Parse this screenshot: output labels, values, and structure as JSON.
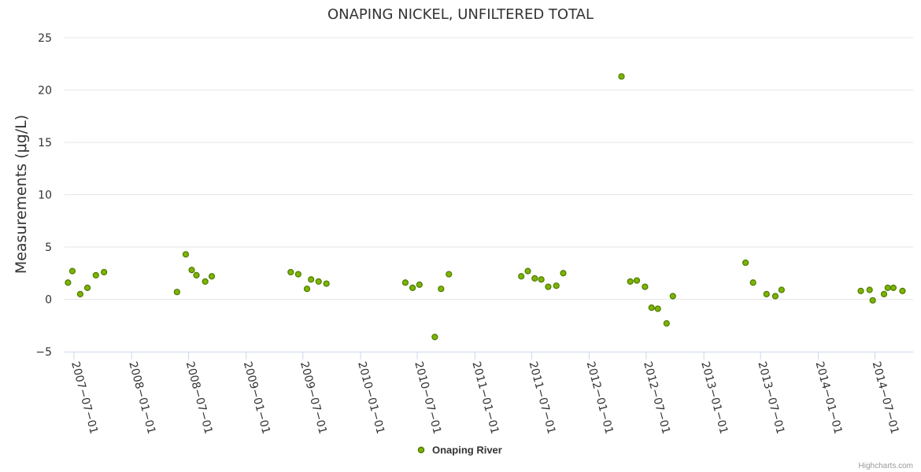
{
  "chart_data": {
    "type": "scatter",
    "title": "ONAPING NICKEL, UNFILTERED TOTAL",
    "ylabel": "Measurements (μg/L)",
    "xlabel": "",
    "ylim": [
      -5,
      25
    ],
    "yticks": [
      -5,
      0,
      5,
      10,
      15,
      20,
      25
    ],
    "xticks": [
      "2007-07-01",
      "2008-01-01",
      "2008-07-01",
      "2009-01-01",
      "2009-07-01",
      "2010-01-01",
      "2010-07-01",
      "2011-01-01",
      "2011-07-01",
      "2012-01-01",
      "2012-07-01",
      "2013-01-01",
      "2013-07-01",
      "2014-01-01",
      "2014-07-01"
    ],
    "xlim": [
      "2007-06-01",
      "2014-10-31"
    ],
    "grid": true,
    "legend_position": "bottom-center",
    "series": [
      {
        "name": "Onaping River",
        "color": "#7cb500",
        "points": [
          {
            "x": "2007-06-12",
            "y": 1.6
          },
          {
            "x": "2007-06-26",
            "y": 2.7
          },
          {
            "x": "2007-07-21",
            "y": 0.5
          },
          {
            "x": "2007-08-13",
            "y": 1.1
          },
          {
            "x": "2007-09-09",
            "y": 2.3
          },
          {
            "x": "2007-10-05",
            "y": 2.6
          },
          {
            "x": "2008-05-25",
            "y": 0.7
          },
          {
            "x": "2008-06-22",
            "y": 4.3
          },
          {
            "x": "2008-07-11",
            "y": 2.8
          },
          {
            "x": "2008-07-26",
            "y": 2.3
          },
          {
            "x": "2008-08-23",
            "y": 1.7
          },
          {
            "x": "2008-09-13",
            "y": 2.2
          },
          {
            "x": "2009-05-23",
            "y": 2.6
          },
          {
            "x": "2009-06-16",
            "y": 2.4
          },
          {
            "x": "2009-07-14",
            "y": 1.0
          },
          {
            "x": "2009-07-27",
            "y": 1.9
          },
          {
            "x": "2009-08-20",
            "y": 1.7
          },
          {
            "x": "2009-09-14",
            "y": 1.5
          },
          {
            "x": "2010-05-24",
            "y": 1.6
          },
          {
            "x": "2010-06-16",
            "y": 1.1
          },
          {
            "x": "2010-07-08",
            "y": 1.4
          },
          {
            "x": "2010-08-26",
            "y": -3.6
          },
          {
            "x": "2010-09-15",
            "y": 1.0
          },
          {
            "x": "2010-10-10",
            "y": 2.4
          },
          {
            "x": "2011-05-29",
            "y": 2.2
          },
          {
            "x": "2011-06-19",
            "y": 2.7
          },
          {
            "x": "2011-07-11",
            "y": 2.0
          },
          {
            "x": "2011-08-01",
            "y": 1.9
          },
          {
            "x": "2011-08-23",
            "y": 1.2
          },
          {
            "x": "2011-09-18",
            "y": 1.3
          },
          {
            "x": "2011-10-10",
            "y": 2.5
          },
          {
            "x": "2012-04-13",
            "y": 21.3
          },
          {
            "x": "2012-05-11",
            "y": 1.7
          },
          {
            "x": "2012-06-01",
            "y": 1.8
          },
          {
            "x": "2012-06-27",
            "y": 1.2
          },
          {
            "x": "2012-07-18",
            "y": -0.8
          },
          {
            "x": "2012-08-07",
            "y": -0.9
          },
          {
            "x": "2012-09-04",
            "y": -2.3
          },
          {
            "x": "2012-09-24",
            "y": 0.3
          },
          {
            "x": "2013-05-14",
            "y": 3.5
          },
          {
            "x": "2013-06-07",
            "y": 1.6
          },
          {
            "x": "2013-07-20",
            "y": 0.5
          },
          {
            "x": "2013-08-17",
            "y": 0.3
          },
          {
            "x": "2013-09-06",
            "y": 0.9
          },
          {
            "x": "2014-05-17",
            "y": 0.8
          },
          {
            "x": "2014-06-14",
            "y": 0.9
          },
          {
            "x": "2014-06-24",
            "y": -0.1
          },
          {
            "x": "2014-07-30",
            "y": 0.5
          },
          {
            "x": "2014-08-11",
            "y": 1.1
          },
          {
            "x": "2014-08-29",
            "y": 1.1
          },
          {
            "x": "2014-09-27",
            "y": 0.8
          }
        ]
      }
    ],
    "credits": "Highcharts.com"
  }
}
